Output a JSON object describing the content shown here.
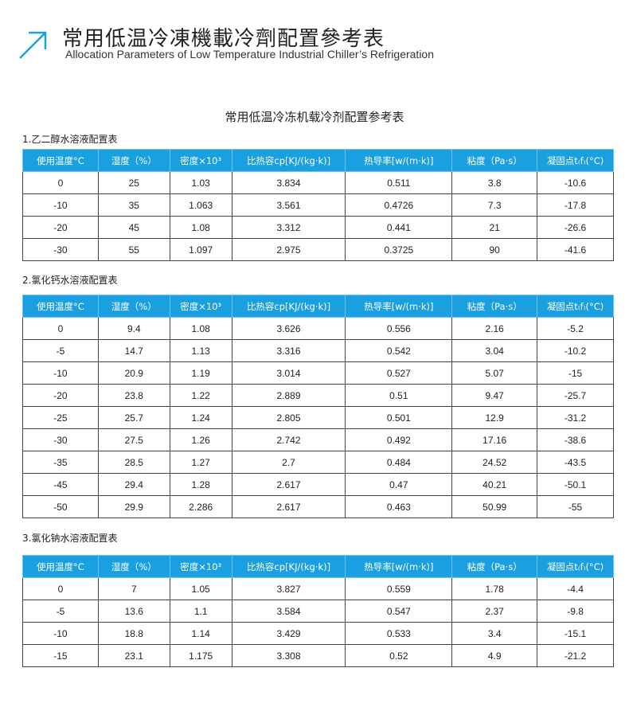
{
  "header": {
    "title_cn": "常用低温冷凍機載冷劑配置參考表",
    "title_en": "Allocation Parameters of Low Temperature Industrial Chiller’s Refrigeration",
    "icon": "arrow-up-right-icon",
    "accent": "#1a9fe0"
  },
  "subtitle": "常用低温冷冻机载冷剂配置参考表",
  "columns": [
    "使用温度°C",
    "湿度（%）",
    "密度×10³",
    "比热容cp[KJ/(kg·k)]",
    "热导率[w/(m·k)]",
    "粘度（Pa·s）",
    "凝固点t₍f₎(°C)"
  ],
  "tables": [
    {
      "label": "1.乙二醇水溶液配置表",
      "rows": [
        [
          "0",
          "25",
          "1.03",
          "3.834",
          "0.511",
          "3.8",
          "-10.6"
        ],
        [
          "-10",
          "35",
          "1.063",
          "3.561",
          "0.4726",
          "7.3",
          "-17.8"
        ],
        [
          "-20",
          "45",
          "1.08",
          "3.312",
          "0.441",
          "21",
          "-26.6"
        ],
        [
          "-30",
          "55",
          "1.097",
          "2.975",
          "0.3725",
          "90",
          "-41.6"
        ]
      ]
    },
    {
      "label": "2.氯化钙水溶液配置表",
      "rows": [
        [
          "0",
          "9.4",
          "1.08",
          "3.626",
          "0.556",
          "2.16",
          "-5.2"
        ],
        [
          "-5",
          "14.7",
          "1.13",
          "3.316",
          "0.542",
          "3.04",
          "-10.2"
        ],
        [
          "-10",
          "20.9",
          "1.19",
          "3.014",
          "0.527",
          "5.07",
          "-15"
        ],
        [
          "-20",
          "23.8",
          "1.22",
          "2.889",
          "0.51",
          "9.47",
          "-25.7"
        ],
        [
          "-25",
          "25.7",
          "1.24",
          "2.805",
          "0.501",
          "12.9",
          "-31.2"
        ],
        [
          "-30",
          "27.5",
          "1.26",
          "2.742",
          "0.492",
          "17.16",
          "-38.6"
        ],
        [
          "-35",
          "28.5",
          "1.27",
          "2.7",
          "0.484",
          "24.52",
          "-43.5"
        ],
        [
          "-45",
          "29.4",
          "1.28",
          "2.617",
          "0.47",
          "40.21",
          "-50.1"
        ],
        [
          "-50",
          "29.9",
          "2.286",
          "2.617",
          "0.463",
          "50.99",
          "-55"
        ]
      ]
    },
    {
      "label": "3.氯化钠水溶液配置表",
      "rows": [
        [
          "0",
          "7",
          "1.05",
          "3.827",
          "0.559",
          "1.78",
          "-4.4"
        ],
        [
          "-5",
          "13.6",
          "1.1",
          "3.584",
          "0.547",
          "2.37",
          "-9.8"
        ],
        [
          "-10",
          "18.8",
          "1.14",
          "3.429",
          "0.533",
          "3.4",
          "-15.1"
        ],
        [
          "-15",
          "23.1",
          "1.175",
          "3.308",
          "0.52",
          "4.9",
          "-21.2"
        ]
      ]
    }
  ]
}
